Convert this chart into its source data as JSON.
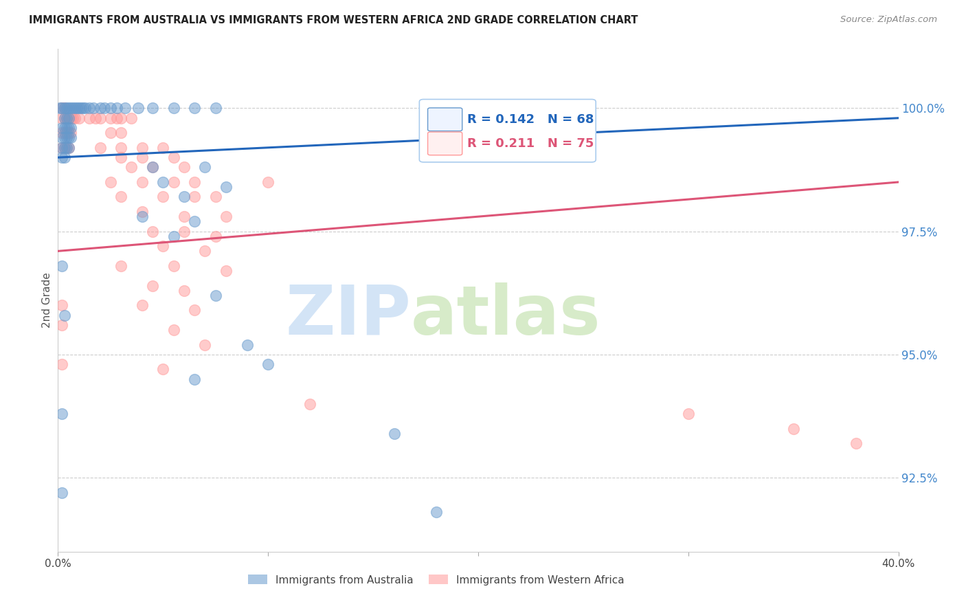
{
  "title": "IMMIGRANTS FROM AUSTRALIA VS IMMIGRANTS FROM WESTERN AFRICA 2ND GRADE CORRELATION CHART",
  "source": "Source: ZipAtlas.com",
  "ylabel": "2nd Grade",
  "ytick_labels": [
    "100.0%",
    "97.5%",
    "95.0%",
    "92.5%"
  ],
  "ytick_values": [
    1.0,
    0.975,
    0.95,
    0.925
  ],
  "xlim": [
    0.0,
    0.4
  ],
  "ylim": [
    0.91,
    1.012
  ],
  "legend_blue_r": "0.142",
  "legend_blue_n": "68",
  "legend_pink_r": "0.211",
  "legend_pink_n": "75",
  "blue_color": "#6699CC",
  "pink_color": "#FF9999",
  "blue_line_color": "#2266BB",
  "pink_line_color": "#DD5577",
  "blue_scatter": [
    [
      0.001,
      1.0
    ],
    [
      0.002,
      1.0
    ],
    [
      0.003,
      1.0
    ],
    [
      0.004,
      1.0
    ],
    [
      0.005,
      1.0
    ],
    [
      0.006,
      1.0
    ],
    [
      0.007,
      1.0
    ],
    [
      0.008,
      1.0
    ],
    [
      0.009,
      1.0
    ],
    [
      0.01,
      1.0
    ],
    [
      0.011,
      1.0
    ],
    [
      0.012,
      1.0
    ],
    [
      0.013,
      1.0
    ],
    [
      0.015,
      1.0
    ],
    [
      0.017,
      1.0
    ],
    [
      0.02,
      1.0
    ],
    [
      0.022,
      1.0
    ],
    [
      0.025,
      1.0
    ],
    [
      0.028,
      1.0
    ],
    [
      0.032,
      1.0
    ],
    [
      0.038,
      1.0
    ],
    [
      0.045,
      1.0
    ],
    [
      0.055,
      1.0
    ],
    [
      0.065,
      1.0
    ],
    [
      0.075,
      1.0
    ],
    [
      0.003,
      0.998
    ],
    [
      0.004,
      0.998
    ],
    [
      0.005,
      0.998
    ],
    [
      0.002,
      0.996
    ],
    [
      0.003,
      0.996
    ],
    [
      0.004,
      0.996
    ],
    [
      0.005,
      0.996
    ],
    [
      0.006,
      0.996
    ],
    [
      0.002,
      0.994
    ],
    [
      0.003,
      0.994
    ],
    [
      0.004,
      0.994
    ],
    [
      0.005,
      0.994
    ],
    [
      0.006,
      0.994
    ],
    [
      0.002,
      0.992
    ],
    [
      0.003,
      0.992
    ],
    [
      0.004,
      0.992
    ],
    [
      0.005,
      0.992
    ],
    [
      0.002,
      0.99
    ],
    [
      0.003,
      0.99
    ],
    [
      0.045,
      0.988
    ],
    [
      0.07,
      0.988
    ],
    [
      0.05,
      0.985
    ],
    [
      0.08,
      0.984
    ],
    [
      0.06,
      0.982
    ],
    [
      0.04,
      0.978
    ],
    [
      0.065,
      0.977
    ],
    [
      0.055,
      0.974
    ],
    [
      0.002,
      0.968
    ],
    [
      0.075,
      0.962
    ],
    [
      0.003,
      0.958
    ],
    [
      0.09,
      0.952
    ],
    [
      0.1,
      0.948
    ],
    [
      0.065,
      0.945
    ],
    [
      0.002,
      0.938
    ],
    [
      0.16,
      0.934
    ],
    [
      0.002,
      0.922
    ],
    [
      0.18,
      0.918
    ]
  ],
  "pink_scatter": [
    [
      0.002,
      1.0
    ],
    [
      0.003,
      1.0
    ],
    [
      0.2,
      1.0
    ],
    [
      0.23,
      1.0
    ],
    [
      0.002,
      0.998
    ],
    [
      0.003,
      0.998
    ],
    [
      0.004,
      0.998
    ],
    [
      0.005,
      0.998
    ],
    [
      0.006,
      0.998
    ],
    [
      0.007,
      0.998
    ],
    [
      0.008,
      0.998
    ],
    [
      0.01,
      0.998
    ],
    [
      0.015,
      0.998
    ],
    [
      0.018,
      0.998
    ],
    [
      0.02,
      0.998
    ],
    [
      0.025,
      0.998
    ],
    [
      0.028,
      0.998
    ],
    [
      0.03,
      0.998
    ],
    [
      0.035,
      0.998
    ],
    [
      0.002,
      0.995
    ],
    [
      0.003,
      0.995
    ],
    [
      0.004,
      0.995
    ],
    [
      0.005,
      0.995
    ],
    [
      0.006,
      0.995
    ],
    [
      0.025,
      0.995
    ],
    [
      0.03,
      0.995
    ],
    [
      0.002,
      0.992
    ],
    [
      0.003,
      0.992
    ],
    [
      0.004,
      0.992
    ],
    [
      0.005,
      0.992
    ],
    [
      0.02,
      0.992
    ],
    [
      0.03,
      0.992
    ],
    [
      0.04,
      0.992
    ],
    [
      0.05,
      0.992
    ],
    [
      0.03,
      0.99
    ],
    [
      0.04,
      0.99
    ],
    [
      0.055,
      0.99
    ],
    [
      0.035,
      0.988
    ],
    [
      0.045,
      0.988
    ],
    [
      0.06,
      0.988
    ],
    [
      0.025,
      0.985
    ],
    [
      0.04,
      0.985
    ],
    [
      0.055,
      0.985
    ],
    [
      0.065,
      0.985
    ],
    [
      0.1,
      0.985
    ],
    [
      0.03,
      0.982
    ],
    [
      0.05,
      0.982
    ],
    [
      0.065,
      0.982
    ],
    [
      0.075,
      0.982
    ],
    [
      0.04,
      0.979
    ],
    [
      0.06,
      0.978
    ],
    [
      0.08,
      0.978
    ],
    [
      0.045,
      0.975
    ],
    [
      0.06,
      0.975
    ],
    [
      0.075,
      0.974
    ],
    [
      0.05,
      0.972
    ],
    [
      0.07,
      0.971
    ],
    [
      0.03,
      0.968
    ],
    [
      0.055,
      0.968
    ],
    [
      0.08,
      0.967
    ],
    [
      0.045,
      0.964
    ],
    [
      0.06,
      0.963
    ],
    [
      0.002,
      0.96
    ],
    [
      0.04,
      0.96
    ],
    [
      0.065,
      0.959
    ],
    [
      0.002,
      0.956
    ],
    [
      0.055,
      0.955
    ],
    [
      0.07,
      0.952
    ],
    [
      0.002,
      0.948
    ],
    [
      0.05,
      0.947
    ],
    [
      0.12,
      0.94
    ],
    [
      0.3,
      0.938
    ],
    [
      0.35,
      0.935
    ],
    [
      0.38,
      0.932
    ]
  ],
  "blue_trendline": [
    [
      0.0,
      0.99
    ],
    [
      0.4,
      0.998
    ]
  ],
  "pink_trendline": [
    [
      0.0,
      0.971
    ],
    [
      0.4,
      0.985
    ]
  ],
  "watermark_zip": "ZIP",
  "watermark_atlas": "atlas",
  "marker_size": 130
}
